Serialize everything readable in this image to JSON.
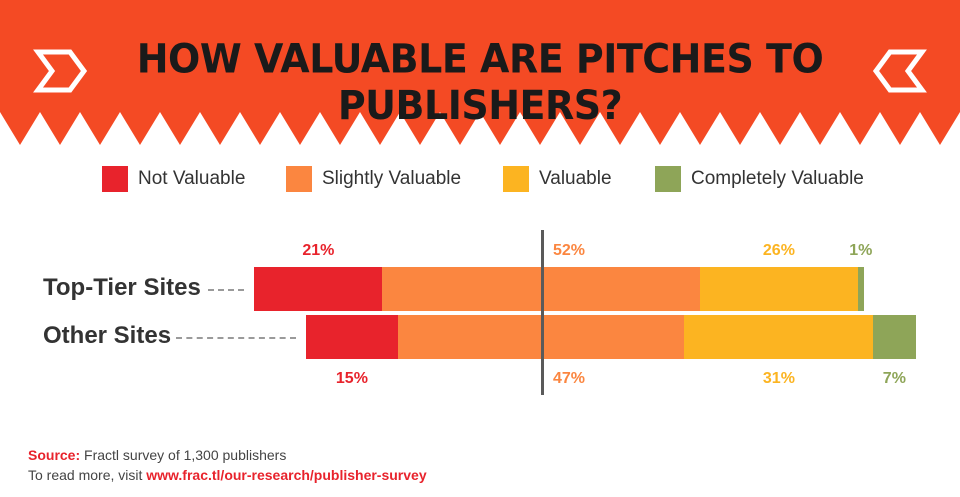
{
  "title": "HOW VALUABLE ARE PITCHES TO PUBLISHERS?",
  "colors": {
    "banner": "#f44a24",
    "not_valuable": "#e8232c",
    "slightly_valuable": "#fb8640",
    "valuable": "#fcb421",
    "completely_valuable": "#8ea558"
  },
  "legend": [
    {
      "label": "Not Valuable",
      "color": "#e8232c"
    },
    {
      "label": "Slightly Valuable",
      "color": "#fb8640"
    },
    {
      "label": "Valuable",
      "color": "#fcb421"
    },
    {
      "label": "Completely Valuable",
      "color": "#8ea558"
    }
  ],
  "chart_data": {
    "type": "bar",
    "orientation": "horizontal",
    "stacked": "diverging",
    "unit": "%",
    "categories": [
      "Top-Tier Sites",
      "Other Sites"
    ],
    "series": [
      {
        "name": "Not Valuable",
        "values": [
          21,
          15
        ],
        "labels": [
          "21%",
          "15%"
        ]
      },
      {
        "name": "Slightly Valuable",
        "values": [
          52,
          47
        ],
        "labels": [
          "52%",
          "47%"
        ]
      },
      {
        "name": "Valuable",
        "values": [
          26,
          31
        ],
        "labels": [
          "26%",
          "31%"
        ]
      },
      {
        "name": "Completely Valuable",
        "values": [
          1,
          7
        ],
        "labels": [
          "1%",
          "7%"
        ]
      }
    ],
    "legend_position": "top",
    "grid": false
  },
  "footer": {
    "source_label": "Source:",
    "source_text": "Fractl survey of 1,300 publishers",
    "more_text": "To read more, visit",
    "link": "www.frac.tl/our-research/publisher-survey"
  }
}
